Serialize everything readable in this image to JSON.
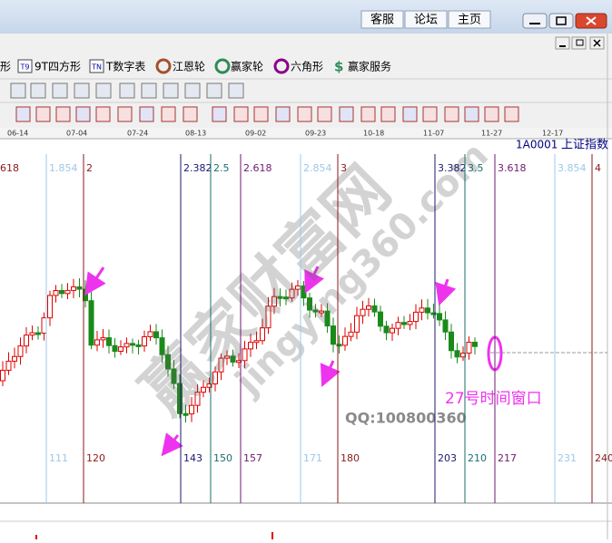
{
  "menu": [
    "客服",
    "论坛",
    "主页"
  ],
  "toolbar": {
    "icons": [
      "T9",
      "TN"
    ],
    "items": [
      "形",
      "9T四方形",
      "T数字表",
      "江恩轮",
      "赢家轮",
      "六角形",
      "赢家服务"
    ]
  },
  "dates": [
    "06-14",
    "07-04",
    "07-24",
    "08-13",
    "09-02",
    "09-23",
    "10-18",
    "11-07",
    "11-27",
    "12-17"
  ],
  "chart": {
    "code": "1A0001",
    "name": "上证指数",
    "left_label": "618",
    "lines": [
      {
        "top": "1.854",
        "bottom": "111",
        "color": "#9cc8e8"
      },
      {
        "top": "2",
        "bottom": "120",
        "color": "#8b1a1a"
      },
      {
        "top": "2.382",
        "bottom": "143",
        "color": "#1a1a6e"
      },
      {
        "top": "2.5",
        "bottom": "150",
        "color": "#1a6e6e"
      },
      {
        "top": "2.618",
        "bottom": "157",
        "color": "#6e1a6e"
      },
      {
        "top": "2.854",
        "bottom": "171",
        "color": "#9cc8e8"
      },
      {
        "top": "3",
        "bottom": "180",
        "color": "#8b1a1a"
      },
      {
        "top": "3.382",
        "bottom": "203",
        "color": "#1a1a6e"
      },
      {
        "top": "3.5",
        "bottom": "210",
        "color": "#1a6e6e"
      },
      {
        "top": "3.618",
        "bottom": "217",
        "color": "#6e1a6e"
      },
      {
        "top": "3.854",
        "bottom": "231",
        "color": "#9cc8e8"
      },
      {
        "top": "4",
        "bottom": "240",
        "color": "#8b1a1a"
      }
    ],
    "annotation": "27号时间窗口",
    "qq": "QQ:100800360",
    "watermark": "赢家财富网",
    "watermark_url": "jingying360.com"
  }
}
